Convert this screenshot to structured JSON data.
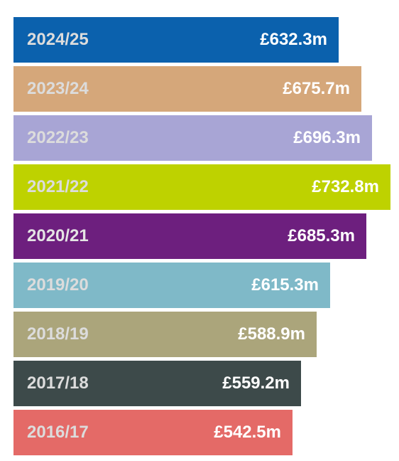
{
  "chart_data": {
    "type": "bar",
    "orientation": "horizontal",
    "categories": [
      "2024/25",
      "2023/24",
      "2022/23",
      "2021/22",
      "2020/21",
      "2019/20",
      "2018/19",
      "2017/18",
      "2016/17"
    ],
    "values": [
      632.3,
      675.7,
      696.3,
      732.8,
      685.3,
      615.3,
      588.9,
      559.2,
      542.5
    ],
    "value_labels": [
      "£632.3m",
      "£675.7m",
      "£696.3m",
      "£732.8m",
      "£685.3m",
      "£615.3m",
      "£588.9m",
      "£559.2m",
      "£542.5m"
    ],
    "unit": "£m",
    "colors": [
      "#0b61ad",
      "#d5a77a",
      "#a8a5d5",
      "#bed200",
      "#6d1f7e",
      "#7fb9c8",
      "#aba57b",
      "#3d4a4a",
      "#e46a67"
    ],
    "label_colors": [
      "#dcdcdc",
      "#dcdcdc",
      "#dcdcdc",
      "#dcdcdc",
      "#e4e4e4",
      "#dcdcdc",
      "#dcdcdc",
      "#dcdcdc",
      "#dcdcdc"
    ],
    "title": "",
    "xlabel": "",
    "ylabel": "",
    "grid": false,
    "legend": "none"
  }
}
